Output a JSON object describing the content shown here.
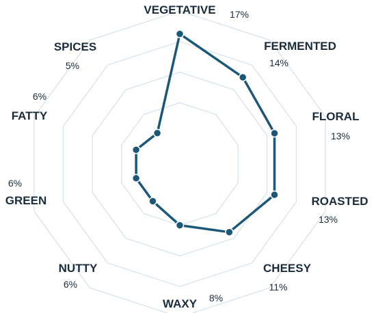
{
  "chart_data": {
    "type": "radar",
    "categories": [
      "VEGETATIVE",
      "FERMENTED",
      "FLORAL",
      "ROASTED",
      "CHEESY",
      "WAXY",
      "NUTTY",
      "GREEN",
      "FATTY",
      "SPICES"
    ],
    "percent_labels": [
      "17%",
      "14%",
      "13%",
      "13%",
      "11%",
      "8%",
      "6%",
      "6%",
      "6%",
      "5%"
    ],
    "values": [
      17,
      14,
      13,
      13,
      11,
      8,
      6,
      6,
      6,
      5
    ],
    "rlim": [
      0,
      20
    ],
    "grid_levels": 4,
    "grid": true,
    "legend": "none",
    "colors": {
      "series": "#1b5778",
      "grid": "#c9dce8",
      "text": "#1a2b3c"
    }
  }
}
